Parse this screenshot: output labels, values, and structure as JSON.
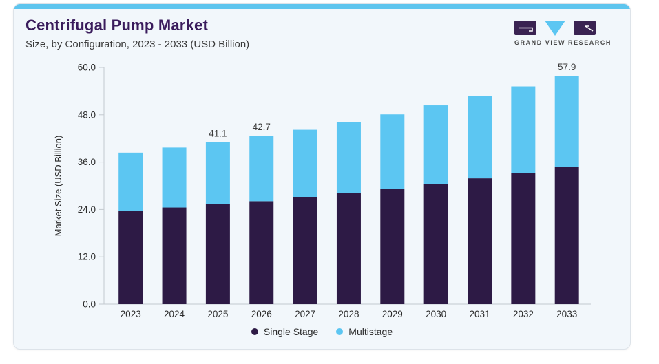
{
  "card": {
    "title": "Centrifugal Pump Market",
    "subtitle": "Size, by Configuration, 2023 - 2033 (USD Billion)"
  },
  "logo": {
    "text": "GRAND VIEW RESEARCH"
  },
  "colors": {
    "single_stage": "#2d1a45",
    "multistage": "#5cc6f2",
    "top_strip": "#5ec5ee",
    "title_text": "#3a1c5c",
    "axis_line": "#c3c9cf",
    "tick_text": "#2b2b2b",
    "value_label_text": "#3a3a3a",
    "logo_block": "#3a2352",
    "logo_triangle": "#5cc6f2"
  },
  "chart_data": {
    "type": "bar",
    "stacked": true,
    "title": "Centrifugal Pump Market Size, by Configuration, 2023 - 2033 (USD Billion)",
    "categories": [
      "2023",
      "2024",
      "2025",
      "2026",
      "2027",
      "2028",
      "2029",
      "2030",
      "2031",
      "2032",
      "2033"
    ],
    "series": [
      {
        "name": "Single Stage",
        "color": "#2d1a45",
        "values": [
          23.7,
          24.5,
          25.3,
          26.1,
          27.1,
          28.2,
          29.3,
          30.5,
          31.9,
          33.2,
          34.8
        ]
      },
      {
        "name": "Multistage",
        "color": "#5cc6f2",
        "values": [
          14.7,
          15.2,
          15.8,
          16.6,
          17.1,
          18.0,
          18.8,
          19.9,
          20.9,
          22.0,
          23.1
        ]
      }
    ],
    "totals": [
      38.4,
      39.7,
      41.1,
      42.7,
      44.2,
      46.2,
      48.1,
      50.4,
      52.8,
      55.2,
      57.9
    ],
    "totals_labels": [
      "",
      "",
      "41.1",
      "42.7",
      "",
      "",
      "",
      "",
      "",
      "",
      "57.9"
    ],
    "xlabel": "",
    "ylabel": "Market Size (USD Billion)",
    "ylim": [
      0,
      60
    ],
    "yticks": [
      "0.0",
      "12.0",
      "24.0",
      "36.0",
      "48.0",
      "60.0"
    ],
    "ytick_values": [
      0,
      12,
      24,
      36,
      48,
      60
    ],
    "grid": false,
    "legend_position": "bottom"
  },
  "legend": {
    "items": [
      {
        "label": "Single Stage",
        "color": "#2d1a45"
      },
      {
        "label": "Multistage",
        "color": "#5cc6f2"
      }
    ]
  }
}
